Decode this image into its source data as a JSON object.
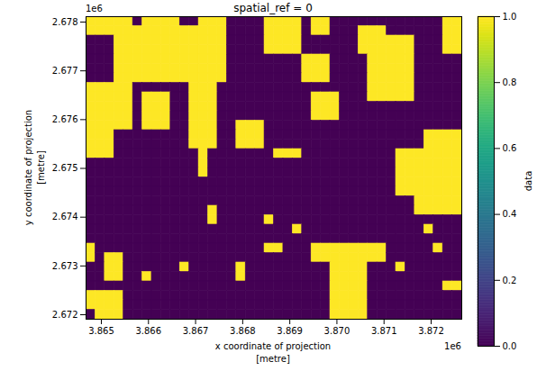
{
  "chart_data": {
    "type": "raster",
    "title": "spatial_ref = 0",
    "x_label": "x coordinate of projection\n[metre]",
    "y_label": "y coordinate of projection\n[metre]",
    "x_offset_label": "1e6",
    "y_offset_label": "1e6",
    "xlim": [
      3864675,
      3872650
    ],
    "ylim": [
      2671908,
      2678111
    ],
    "xticks": [
      {
        "value": 3865000,
        "label": "3.865"
      },
      {
        "value": 3866000,
        "label": "3.866"
      },
      {
        "value": 3867000,
        "label": "3.867"
      },
      {
        "value": 3868000,
        "label": "3.868"
      },
      {
        "value": 3869000,
        "label": "3.869"
      },
      {
        "value": 3870000,
        "label": "3.870"
      },
      {
        "value": 3871000,
        "label": "3.871"
      },
      {
        "value": 3872000,
        "label": "3.872"
      }
    ],
    "yticks": [
      {
        "value": 2672000,
        "label": "2.672"
      },
      {
        "value": 2673000,
        "label": "2.673"
      },
      {
        "value": 2674000,
        "label": "2.674"
      },
      {
        "value": 2675000,
        "label": "2.675"
      },
      {
        "value": 2676000,
        "label": "2.676"
      },
      {
        "value": 2677000,
        "label": "2.677"
      },
      {
        "value": 2678000,
        "label": "2.678"
      }
    ],
    "color": "viridis",
    "colorbar": {
      "label": "data",
      "lim": [
        0,
        1
      ],
      "ticks": [
        {
          "value": 0,
          "label": "0.0"
        },
        {
          "value": 0.2,
          "label": "0.2"
        },
        {
          "value": 0.4,
          "label": "0.4"
        },
        {
          "value": 0.6,
          "label": "0.6"
        },
        {
          "value": 0.8,
          "label": "0.8"
        },
        {
          "value": 1,
          "label": "1.0"
        }
      ]
    },
    "cells": [
      [
        1,
        1,
        1,
        1,
        1,
        0,
        1,
        1,
        1,
        1,
        0,
        0,
        1,
        1,
        1,
        0,
        0,
        0,
        0,
        1,
        1,
        1,
        1,
        0,
        1,
        1,
        0,
        0,
        0,
        0,
        0,
        0,
        0,
        0,
        0,
        0,
        0,
        0,
        1,
        1
      ],
      [
        1,
        1,
        1,
        1,
        1,
        1,
        1,
        1,
        1,
        1,
        1,
        1,
        1,
        1,
        1,
        0,
        0,
        0,
        0,
        1,
        1,
        1,
        1,
        0,
        1,
        1,
        0,
        0,
        0,
        1,
        1,
        1,
        0,
        0,
        0,
        0,
        0,
        0,
        1,
        1
      ],
      [
        0,
        0,
        0,
        1,
        1,
        1,
        1,
        1,
        1,
        1,
        1,
        1,
        1,
        1,
        1,
        0,
        0,
        0,
        0,
        1,
        1,
        1,
        1,
        0,
        0,
        0,
        0,
        0,
        0,
        1,
        1,
        1,
        1,
        1,
        1,
        0,
        0,
        0,
        1,
        1
      ],
      [
        0,
        0,
        0,
        1,
        1,
        1,
        1,
        1,
        1,
        1,
        1,
        1,
        1,
        1,
        1,
        0,
        0,
        0,
        0,
        1,
        1,
        1,
        1,
        0,
        0,
        0,
        0,
        0,
        0,
        1,
        1,
        1,
        1,
        1,
        1,
        0,
        0,
        0,
        1,
        1
      ],
      [
        0,
        0,
        0,
        1,
        1,
        1,
        1,
        1,
        1,
        1,
        1,
        1,
        1,
        1,
        1,
        0,
        0,
        0,
        0,
        0,
        0,
        0,
        0,
        1,
        1,
        1,
        0,
        0,
        0,
        0,
        1,
        1,
        1,
        1,
        1,
        0,
        0,
        0,
        0,
        0
      ],
      [
        0,
        0,
        0,
        1,
        1,
        1,
        1,
        1,
        1,
        1,
        1,
        1,
        1,
        1,
        1,
        0,
        0,
        0,
        0,
        0,
        0,
        0,
        0,
        1,
        1,
        1,
        0,
        0,
        0,
        0,
        1,
        1,
        1,
        1,
        1,
        0,
        0,
        0,
        0,
        0
      ],
      [
        0,
        0,
        0,
        1,
        1,
        1,
        1,
        1,
        1,
        1,
        1,
        1,
        1,
        1,
        1,
        0,
        0,
        0,
        0,
        0,
        0,
        0,
        0,
        1,
        1,
        1,
        0,
        0,
        0,
        0,
        1,
        1,
        1,
        1,
        1,
        0,
        0,
        0,
        0,
        0
      ],
      [
        1,
        1,
        1,
        1,
        1,
        0,
        0,
        0,
        0,
        0,
        0,
        1,
        1,
        1,
        0,
        0,
        0,
        0,
        0,
        0,
        0,
        0,
        0,
        0,
        0,
        0,
        0,
        0,
        0,
        0,
        1,
        1,
        1,
        1,
        1,
        0,
        0,
        0,
        0,
        0
      ],
      [
        1,
        1,
        1,
        1,
        1,
        0,
        1,
        1,
        1,
        0,
        0,
        1,
        1,
        1,
        0,
        0,
        0,
        0,
        0,
        0,
        0,
        0,
        0,
        0,
        1,
        1,
        1,
        0,
        0,
        0,
        1,
        1,
        1,
        1,
        1,
        0,
        0,
        0,
        0,
        0
      ],
      [
        1,
        1,
        1,
        1,
        1,
        0,
        1,
        1,
        1,
        0,
        0,
        1,
        1,
        1,
        0,
        0,
        0,
        0,
        0,
        0,
        0,
        0,
        0,
        0,
        1,
        1,
        1,
        0,
        0,
        0,
        0,
        0,
        0,
        0,
        0,
        0,
        0,
        0,
        0,
        0
      ],
      [
        1,
        1,
        1,
        1,
        1,
        0,
        1,
        1,
        1,
        0,
        0,
        1,
        1,
        1,
        0,
        0,
        0,
        0,
        0,
        0,
        0,
        0,
        0,
        0,
        1,
        1,
        1,
        0,
        0,
        0,
        0,
        0,
        0,
        0,
        0,
        0,
        0,
        0,
        0,
        0
      ],
      [
        1,
        1,
        1,
        1,
        1,
        0,
        1,
        1,
        1,
        0,
        0,
        1,
        1,
        1,
        0,
        0,
        1,
        1,
        1,
        0,
        0,
        0,
        0,
        0,
        0,
        0,
        0,
        0,
        0,
        0,
        0,
        0,
        0,
        0,
        0,
        0,
        0,
        0,
        0,
        0
      ],
      [
        1,
        1,
        1,
        0,
        0,
        0,
        0,
        0,
        0,
        0,
        0,
        1,
        1,
        1,
        0,
        0,
        1,
        1,
        1,
        0,
        0,
        0,
        0,
        0,
        0,
        0,
        0,
        0,
        0,
        0,
        0,
        0,
        0,
        0,
        0,
        0,
        1,
        1,
        1,
        1
      ],
      [
        1,
        1,
        1,
        0,
        0,
        0,
        0,
        0,
        0,
        0,
        0,
        1,
        1,
        1,
        0,
        0,
        1,
        1,
        1,
        0,
        0,
        0,
        0,
        0,
        0,
        0,
        0,
        0,
        0,
        0,
        0,
        0,
        0,
        0,
        0,
        0,
        1,
        1,
        1,
        1
      ],
      [
        1,
        1,
        1,
        0,
        0,
        0,
        0,
        0,
        0,
        0,
        0,
        0,
        1,
        0,
        0,
        0,
        0,
        0,
        0,
        0,
        1,
        1,
        1,
        0,
        0,
        0,
        0,
        0,
        0,
        0,
        0,
        0,
        0,
        1,
        1,
        1,
        1,
        1,
        1,
        1
      ],
      [
        0,
        0,
        0,
        0,
        0,
        0,
        0,
        0,
        0,
        0,
        0,
        0,
        1,
        0,
        0,
        0,
        0,
        0,
        0,
        0,
        0,
        0,
        0,
        0,
        0,
        0,
        0,
        0,
        0,
        0,
        0,
        0,
        0,
        1,
        1,
        1,
        1,
        1,
        1,
        1
      ],
      [
        0,
        0,
        0,
        0,
        0,
        0,
        0,
        0,
        0,
        0,
        0,
        0,
        1,
        0,
        0,
        0,
        0,
        0,
        0,
        0,
        0,
        0,
        0,
        0,
        0,
        0,
        0,
        0,
        0,
        0,
        0,
        0,
        0,
        1,
        1,
        1,
        1,
        1,
        1,
        1
      ],
      [
        0,
        0,
        0,
        0,
        0,
        0,
        0,
        0,
        0,
        0,
        0,
        0,
        0,
        0,
        0,
        0,
        0,
        0,
        0,
        0,
        0,
        0,
        0,
        0,
        0,
        0,
        0,
        0,
        0,
        0,
        0,
        0,
        0,
        1,
        1,
        1,
        1,
        1,
        1,
        1
      ],
      [
        0,
        0,
        0,
        0,
        0,
        0,
        0,
        0,
        0,
        0,
        0,
        0,
        0,
        0,
        0,
        0,
        0,
        0,
        0,
        0,
        0,
        0,
        0,
        0,
        0,
        0,
        0,
        0,
        0,
        0,
        0,
        0,
        0,
        1,
        1,
        1,
        1,
        1,
        1,
        1
      ],
      [
        0,
        0,
        0,
        0,
        0,
        0,
        0,
        0,
        0,
        0,
        0,
        0,
        0,
        0,
        0,
        0,
        0,
        0,
        0,
        0,
        0,
        0,
        0,
        0,
        0,
        0,
        0,
        0,
        0,
        0,
        0,
        0,
        0,
        0,
        0,
        1,
        1,
        1,
        1,
        1
      ],
      [
        0,
        0,
        0,
        0,
        0,
        0,
        0,
        0,
        0,
        0,
        0,
        0,
        0,
        1,
        0,
        0,
        0,
        0,
        0,
        0,
        0,
        0,
        0,
        0,
        0,
        0,
        0,
        0,
        0,
        0,
        0,
        0,
        0,
        0,
        0,
        1,
        1,
        1,
        1,
        1
      ],
      [
        0,
        0,
        0,
        0,
        0,
        0,
        0,
        0,
        0,
        0,
        0,
        0,
        0,
        1,
        0,
        0,
        0,
        0,
        0,
        1,
        0,
        0,
        0,
        0,
        0,
        0,
        0,
        0,
        0,
        0,
        0,
        0,
        0,
        0,
        0,
        0,
        0,
        0,
        0,
        0
      ],
      [
        0,
        0,
        0,
        0,
        0,
        0,
        0,
        0,
        0,
        0,
        0,
        0,
        0,
        0,
        0,
        0,
        0,
        0,
        0,
        0,
        0,
        0,
        1,
        0,
        0,
        0,
        0,
        0,
        0,
        0,
        0,
        0,
        0,
        0,
        0,
        0,
        1,
        0,
        0,
        0
      ],
      [
        0,
        0,
        0,
        0,
        0,
        0,
        0,
        0,
        0,
        0,
        0,
        0,
        0,
        0,
        0,
        0,
        0,
        0,
        0,
        0,
        0,
        0,
        0,
        0,
        0,
        0,
        0,
        0,
        0,
        0,
        0,
        0,
        0,
        0,
        0,
        0,
        0,
        0,
        0,
        0
      ],
      [
        1,
        0,
        0,
        0,
        0,
        0,
        0,
        0,
        0,
        0,
        0,
        0,
        0,
        0,
        0,
        0,
        0,
        0,
        0,
        1,
        1,
        0,
        0,
        0,
        1,
        1,
        1,
        1,
        1,
        1,
        1,
        1,
        0,
        0,
        0,
        0,
        0,
        1,
        0,
        0
      ],
      [
        1,
        0,
        1,
        1,
        0,
        0,
        0,
        0,
        0,
        0,
        0,
        0,
        0,
        0,
        0,
        0,
        0,
        0,
        0,
        0,
        0,
        0,
        0,
        0,
        1,
        1,
        1,
        1,
        1,
        1,
        1,
        1,
        0,
        0,
        0,
        0,
        0,
        0,
        0,
        0
      ],
      [
        0,
        0,
        1,
        1,
        0,
        0,
        0,
        0,
        0,
        0,
        1,
        0,
        0,
        0,
        0,
        0,
        1,
        0,
        0,
        0,
        0,
        0,
        0,
        0,
        0,
        0,
        1,
        1,
        1,
        1,
        0,
        0,
        0,
        1,
        0,
        0,
        0,
        0,
        0,
        0
      ],
      [
        0,
        0,
        1,
        1,
        0,
        0,
        1,
        0,
        0,
        0,
        0,
        0,
        0,
        0,
        0,
        0,
        1,
        0,
        0,
        0,
        0,
        0,
        0,
        0,
        0,
        0,
        1,
        1,
        1,
        1,
        0,
        0,
        0,
        0,
        0,
        0,
        0,
        0,
        0,
        0
      ],
      [
        0,
        0,
        0,
        0,
        0,
        0,
        0,
        0,
        0,
        0,
        0,
        0,
        0,
        0,
        0,
        0,
        0,
        0,
        0,
        0,
        0,
        0,
        0,
        0,
        0,
        0,
        1,
        1,
        1,
        1,
        0,
        0,
        0,
        0,
        0,
        0,
        0,
        0,
        1,
        1
      ],
      [
        1,
        1,
        1,
        1,
        0,
        0,
        0,
        0,
        0,
        0,
        0,
        0,
        0,
        0,
        0,
        0,
        0,
        0,
        0,
        0,
        0,
        0,
        0,
        0,
        0,
        0,
        1,
        1,
        1,
        1,
        0,
        0,
        0,
        0,
        0,
        0,
        0,
        0,
        0,
        0
      ],
      [
        1,
        1,
        1,
        1,
        0,
        0,
        0,
        0,
        0,
        0,
        0,
        0,
        0,
        0,
        0,
        0,
        0,
        0,
        0,
        0,
        0,
        0,
        0,
        0,
        0,
        0,
        1,
        1,
        1,
        1,
        0,
        0,
        0,
        0,
        0,
        0,
        0,
        0,
        0,
        0
      ],
      [
        0,
        1,
        1,
        1,
        0,
        0,
        0,
        0,
        0,
        0,
        0,
        0,
        0,
        0,
        0,
        0,
        0,
        0,
        0,
        0,
        0,
        0,
        0,
        0,
        0,
        0,
        1,
        1,
        1,
        1,
        0,
        0,
        0,
        0,
        0,
        0,
        0,
        0,
        0,
        0
      ]
    ]
  }
}
